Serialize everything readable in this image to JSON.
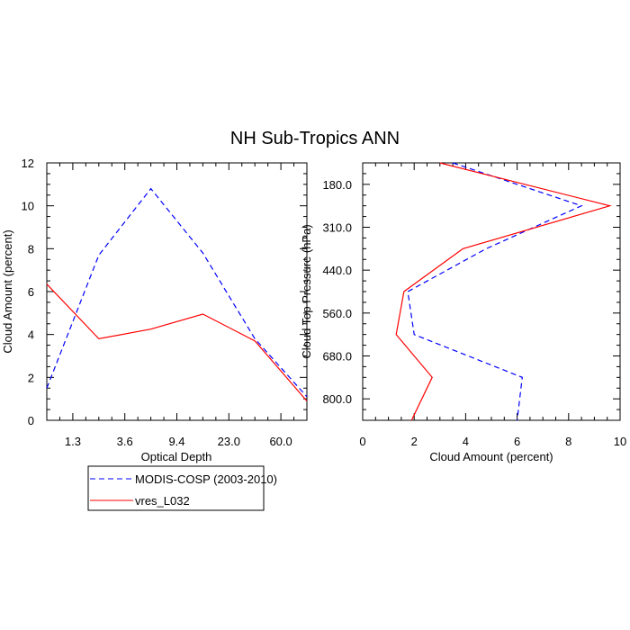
{
  "title": "NH Sub-Tropics ANN",
  "chart_data": [
    {
      "type": "line",
      "xlabel": "Optical Depth",
      "ylabel": "Cloud Amount (percent)",
      "x_tick_labels": [
        "1.3",
        "3.6",
        "9.4",
        "23.0",
        "60.0"
      ],
      "y_tick_labels": [
        "0",
        "2",
        "4",
        "6",
        "8",
        "10",
        "12"
      ],
      "ylim": [
        0,
        12
      ],
      "x_points": 6,
      "series": [
        {
          "name": "MODIS-COSP (2003-2010)",
          "color": "#0000ff",
          "dash": "dashed",
          "values": [
            1.5,
            7.7,
            10.8,
            7.8,
            3.8,
            1.1
          ]
        },
        {
          "name": "vres_L032",
          "color": "#ff0000",
          "dash": "solid",
          "values": [
            6.35,
            3.8,
            4.25,
            4.95,
            3.7,
            0.9
          ]
        }
      ]
    },
    {
      "type": "line",
      "orientation": "vertical-profile",
      "xlabel": "Cloud Amount (percent)",
      "ylabel": "Cloud Top Pressure (hPa)",
      "x_tick_labels": [
        "0",
        "2",
        "4",
        "6",
        "8",
        "10"
      ],
      "y_tick_labels": [
        "180.0",
        "310.0",
        "440.0",
        "560.0",
        "680.0",
        "800.0"
      ],
      "xlim": [
        0,
        10
      ],
      "y_levels": 7,
      "series": [
        {
          "name": "MODIS-COSP (2003-2010)",
          "color": "#0000ff",
          "dash": "dashed",
          "values": [
            3.5,
            8.5,
            4.8,
            1.75,
            2.0,
            6.2,
            6.0
          ]
        },
        {
          "name": "vres_L032",
          "color": "#ff0000",
          "dash": "solid",
          "values": [
            3.0,
            9.6,
            3.9,
            1.6,
            1.3,
            2.7,
            1.9
          ]
        }
      ]
    }
  ],
  "legend": [
    {
      "label": "MODIS-COSP (2003-2010)",
      "color": "#0000ff",
      "dash": "dashed"
    },
    {
      "label": "vres_L032",
      "color": "#ff0000",
      "dash": "solid"
    }
  ]
}
